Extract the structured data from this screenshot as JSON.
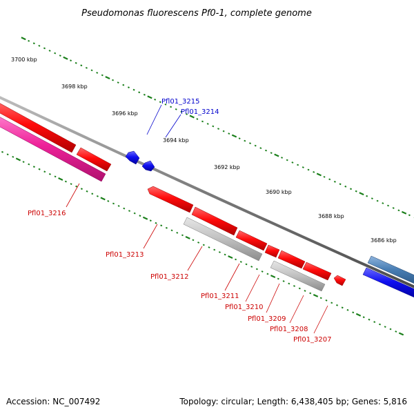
{
  "title": "Pseudomonas fluorescens Pf0-1, complete genome",
  "accession": "Accession: NC_007492",
  "topology": "Topology: circular; Length: 6,438,405 bp; Genes: 5,816",
  "colors": {
    "backbone": "#808080",
    "tick": "#1a7f1a",
    "label_forward": "#0000cc",
    "label_reverse": "#cc0000"
  },
  "kbp_ticks": [
    "3700 kbp",
    "3698 kbp",
    "3696 kbp",
    "3694 kbp",
    "3692 kbp",
    "3690 kbp",
    "3688 kbp",
    "3686 kbp"
  ],
  "gene_labels": [
    "Pfl01_3215",
    "Pfl01_3214",
    "Pfl01_3216",
    "Pfl01_3213",
    "Pfl01_3212",
    "Pfl01_3211",
    "Pfl01_3210",
    "Pfl01_3209",
    "Pfl01_3208",
    "Pfl01_3207"
  ],
  "features": [
    {
      "label": "",
      "strand": "reverse",
      "color": "#ee1111",
      "shape": "bar"
    },
    {
      "label": "",
      "strand": "reverse",
      "color": "#ee1111",
      "shape": "bar"
    },
    {
      "label": "Pfl01_3216",
      "strand": "reverse",
      "color": "#ee2299",
      "shape": "bar"
    },
    {
      "label": "Pfl01_3215",
      "strand": "forward",
      "color": "#1111ee",
      "shape": "arrow"
    },
    {
      "label": "Pfl01_3214",
      "strand": "forward",
      "color": "#1111ee",
      "shape": "arrow"
    },
    {
      "label": "Pfl01_3213",
      "strand": "reverse",
      "color": "#ee1111",
      "shape": "arrow"
    },
    {
      "label": "Pfl01_3212",
      "strand": "reverse",
      "color": "#bdbdbd",
      "shape": "bar"
    },
    {
      "label": "Pfl01_3211",
      "strand": "reverse",
      "color": "#ee1111",
      "shape": "bar"
    },
    {
      "label": "Pfl01_3210",
      "strand": "reverse",
      "color": "#ee1111",
      "shape": "bar"
    },
    {
      "label": "Pfl01_3209",
      "strand": "reverse",
      "color": "#ee1111",
      "shape": "bar"
    },
    {
      "label": "Pfl01_3208",
      "strand": "reverse",
      "color": "#ee1111",
      "shape": "bar"
    },
    {
      "label": "Pfl01_3208",
      "strand": "reverse",
      "color": "#bdbdbd",
      "shape": "bar"
    },
    {
      "label": "Pfl01_3207",
      "strand": "reverse",
      "color": "#ee1111",
      "shape": "arrow"
    },
    {
      "label": "",
      "strand": "forward",
      "color": "#4a7fb5",
      "shape": "bar"
    },
    {
      "label": "",
      "strand": "forward",
      "color": "#1111ee",
      "shape": "bar"
    }
  ]
}
